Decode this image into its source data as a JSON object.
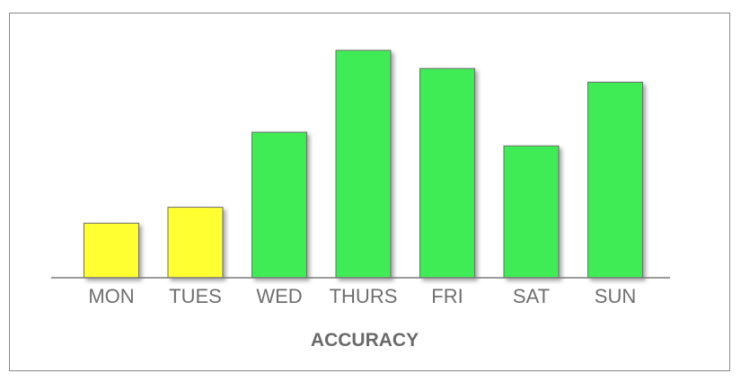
{
  "chart_data": {
    "type": "bar",
    "title": "",
    "xlabel": "ACCURACY",
    "ylabel": "",
    "categories": [
      "MON",
      "TUES",
      "WED",
      "THURS",
      "FRI",
      "SAT",
      "SUN"
    ],
    "values": [
      24,
      31,
      64,
      100,
      92,
      58,
      86
    ],
    "ylim": [
      0,
      100
    ],
    "grid": false,
    "legend": "none",
    "bar_colors": [
      "#ffff33",
      "#ffff33",
      "#3fec55",
      "#3fec55",
      "#3fec55",
      "#3fec55",
      "#3fec55"
    ],
    "bar_outline_color": "#6e6e6e"
  }
}
